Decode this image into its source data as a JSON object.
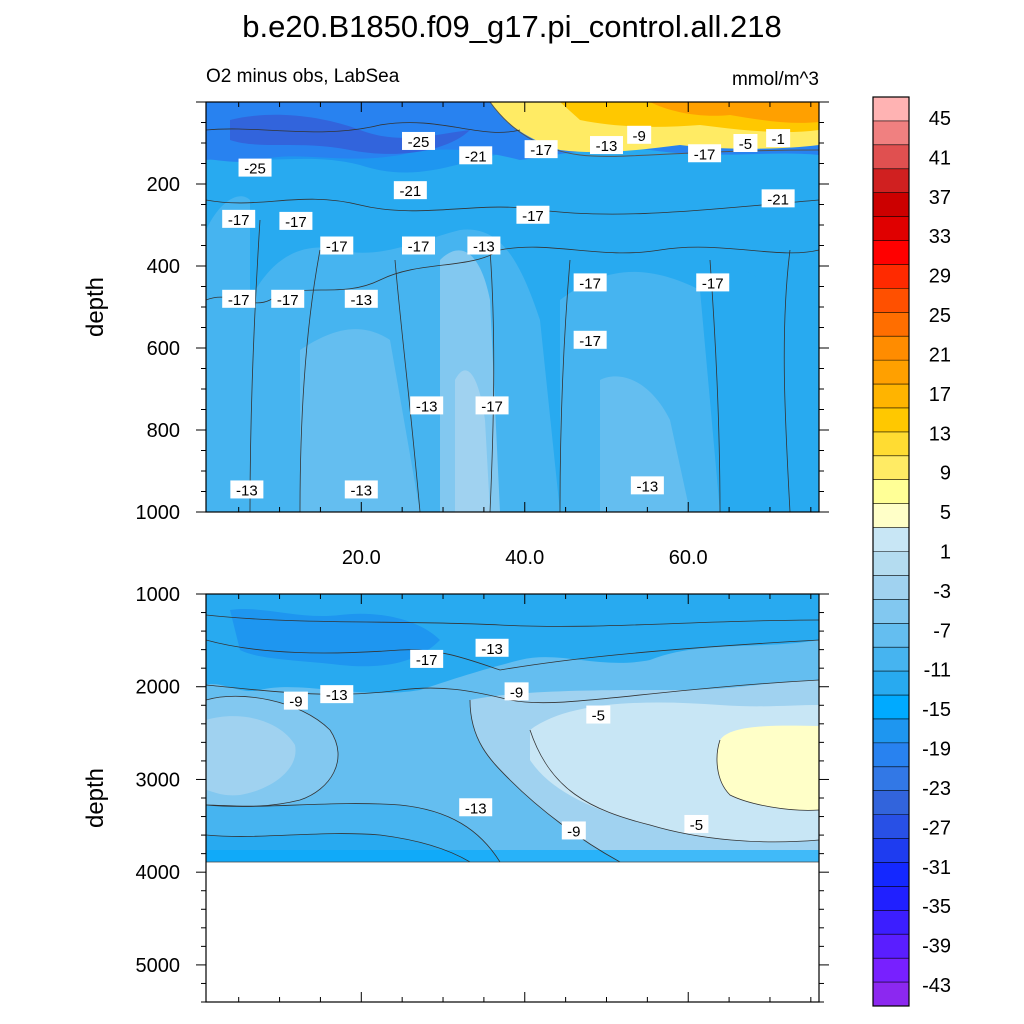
{
  "chart_data": {
    "type": "heatmap",
    "title": "b.e20.B1850.f09_g17.pi_control.all.218",
    "subtitle_left": "O2 minus obs, LabSea",
    "subtitle_right": "mmol/m^3",
    "ylabel": "depth",
    "top_panel": {
      "xlim": [
        1,
        76
      ],
      "ylim": [
        1000,
        0
      ],
      "x_ticks": [
        "20.0",
        "40.0",
        "60.0"
      ],
      "x_tick_values": [
        20,
        40,
        60
      ],
      "y_ticks": [
        "200",
        "400",
        "600",
        "800",
        "1000"
      ],
      "y_tick_values": [
        200,
        400,
        600,
        800,
        1000
      ],
      "contour_labels": [
        {
          "text": "-25",
          "x": 7,
          "y": 160
        },
        {
          "text": "-25",
          "x": 27,
          "y": 95
        },
        {
          "text": "-21",
          "x": 34,
          "y": 130
        },
        {
          "text": "-17",
          "x": 42,
          "y": 115
        },
        {
          "text": "-13",
          "x": 50,
          "y": 105
        },
        {
          "text": "-9",
          "x": 54,
          "y": 80
        },
        {
          "text": "-17",
          "x": 62,
          "y": 125
        },
        {
          "text": "-5",
          "x": 67,
          "y": 100
        },
        {
          "text": "-1",
          "x": 71,
          "y": 88
        },
        {
          "text": "-21",
          "x": 26,
          "y": 215
        },
        {
          "text": "-21",
          "x": 71,
          "y": 235
        },
        {
          "text": "-17",
          "x": 5,
          "y": 285
        },
        {
          "text": "-17",
          "x": 12,
          "y": 290
        },
        {
          "text": "-17",
          "x": 17,
          "y": 350
        },
        {
          "text": "-17",
          "x": 27,
          "y": 350
        },
        {
          "text": "-13",
          "x": 35,
          "y": 350
        },
        {
          "text": "-17",
          "x": 41,
          "y": 275
        },
        {
          "text": "-17",
          "x": 5,
          "y": 480
        },
        {
          "text": "-17",
          "x": 11,
          "y": 480
        },
        {
          "text": "-13",
          "x": 20,
          "y": 480
        },
        {
          "text": "-17",
          "x": 48,
          "y": 440
        },
        {
          "text": "-17",
          "x": 63,
          "y": 440
        },
        {
          "text": "-17",
          "x": 48,
          "y": 580
        },
        {
          "text": "-13",
          "x": 28,
          "y": 740
        },
        {
          "text": "-17",
          "x": 36,
          "y": 740
        },
        {
          "text": "-13",
          "x": 6,
          "y": 945
        },
        {
          "text": "-13",
          "x": 20,
          "y": 945
        },
        {
          "text": "-13",
          "x": 55,
          "y": 935
        }
      ]
    },
    "bottom_panel": {
      "xlim": [
        1,
        76
      ],
      "ylim": [
        5400,
        1000
      ],
      "bottom_of_data": 3870,
      "y_ticks": [
        "1000",
        "2000",
        "3000",
        "4000",
        "5000"
      ],
      "y_tick_values": [
        1000,
        2000,
        3000,
        4000,
        5000
      ],
      "contour_labels": [
        {
          "text": "-17",
          "x": 28,
          "y": 1700
        },
        {
          "text": "-13",
          "x": 36,
          "y": 1580
        },
        {
          "text": "-9",
          "x": 12,
          "y": 2150
        },
        {
          "text": "-13",
          "x": 17,
          "y": 2080
        },
        {
          "text": "-9",
          "x": 39,
          "y": 2050
        },
        {
          "text": "-5",
          "x": 49,
          "y": 2300
        },
        {
          "text": "-13",
          "x": 34,
          "y": 3300
        },
        {
          "text": "-9",
          "x": 46,
          "y": 3550
        },
        {
          "text": "-5",
          "x": 61,
          "y": 3480
        }
      ]
    },
    "colorbar": {
      "levels": [
        "45",
        "41",
        "37",
        "33",
        "29",
        "25",
        "21",
        "17",
        "13",
        "9",
        "5",
        "1",
        "-3",
        "-7",
        "-11",
        "-15",
        "-19",
        "-23",
        "-27",
        "-31",
        "-35",
        "-39",
        "-43"
      ],
      "colors": [
        "#ffb3b3",
        "#f08080",
        "#e05050",
        "#d02020",
        "#cc0000",
        "#e00000",
        "#ff0000",
        "#ff2a00",
        "#ff5000",
        "#ff6e00",
        "#ff8c00",
        "#ffa000",
        "#ffb400",
        "#ffc800",
        "#ffdc32",
        "#ffeb64",
        "#ffff96",
        "#ffffc8",
        "#c8e6f5",
        "#b4dcf0",
        "#a0d2f0",
        "#82c8f0",
        "#64bef0",
        "#46b4f0",
        "#28aaf0",
        "#00aaff",
        "#1e96f0",
        "#2882f0",
        "#3278e6",
        "#3264dc",
        "#2850e6",
        "#1e3cf0",
        "#1428ff",
        "#2020ff",
        "#3c1eff",
        "#5a1eff",
        "#7820ff",
        "#8c28f0"
      ]
    }
  }
}
